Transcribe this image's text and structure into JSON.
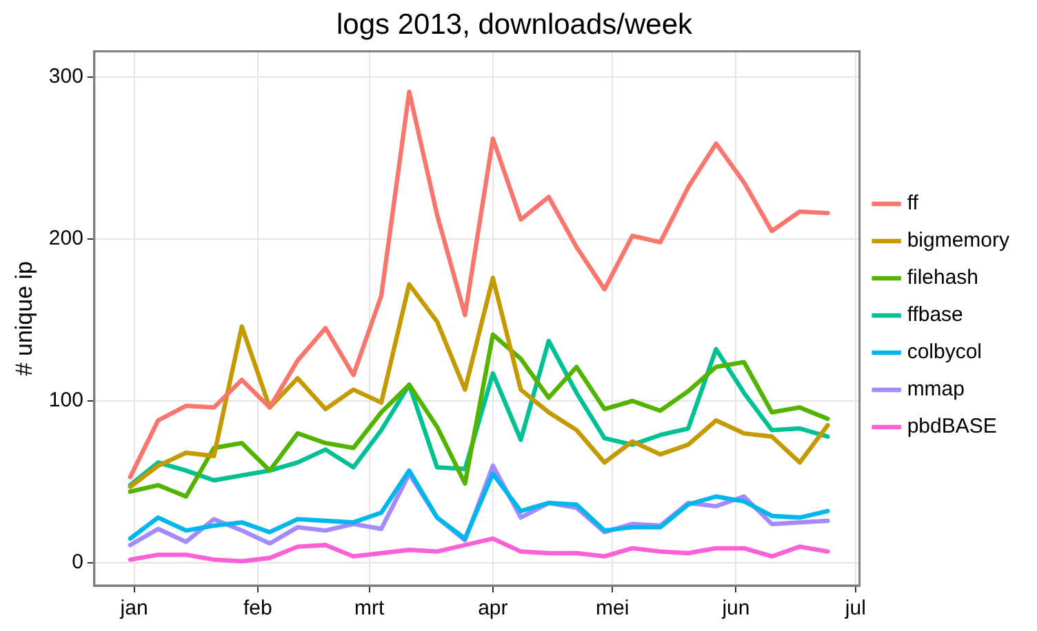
{
  "chart_data": {
    "type": "line",
    "title": "logs 2013, downloads/week",
    "ylabel": "# unique ip",
    "x": [
      "2012-12-31",
      "2013-01-07",
      "2013-01-14",
      "2013-01-21",
      "2013-01-28",
      "2013-02-04",
      "2013-02-11",
      "2013-02-18",
      "2013-02-25",
      "2013-03-04",
      "2013-03-11",
      "2013-03-18",
      "2013-03-25",
      "2013-04-01",
      "2013-04-08",
      "2013-04-15",
      "2013-04-22",
      "2013-04-29",
      "2013-05-06",
      "2013-05-13",
      "2013-05-20",
      "2013-05-27",
      "2013-06-03",
      "2013-06-10",
      "2013-06-17",
      "2013-06-24"
    ],
    "series": [
      {
        "name": "ff",
        "color": "#f8766d",
        "values": [
          53,
          88,
          97,
          96,
          113,
          96,
          125,
          145,
          116,
          165,
          291,
          215,
          153,
          262,
          212,
          226,
          195,
          169,
          202,
          198,
          232,
          259,
          235,
          205,
          217,
          216
        ]
      },
      {
        "name": "bigmemory",
        "color": "#c49a00",
        "values": [
          47,
          60,
          68,
          66,
          146,
          96,
          114,
          95,
          107,
          99,
          172,
          149,
          107,
          176,
          107,
          93,
          82,
          62,
          75,
          67,
          73,
          88,
          80,
          78,
          62,
          85
        ]
      },
      {
        "name": "filehash",
        "color": "#53b400",
        "values": [
          44,
          48,
          41,
          71,
          74,
          57,
          80,
          74,
          71,
          93,
          110,
          84,
          49,
          141,
          126,
          102,
          121,
          95,
          100,
          94,
          106,
          121,
          124,
          93,
          96,
          89
        ]
      },
      {
        "name": "ffbase",
        "color": "#00c094",
        "values": [
          48,
          62,
          57,
          51,
          54,
          57,
          62,
          70,
          59,
          82,
          110,
          59,
          58,
          117,
          76,
          137,
          105,
          77,
          73,
          79,
          83,
          132,
          105,
          82,
          83,
          78
        ]
      },
      {
        "name": "colbycol",
        "color": "#00b6eb",
        "values": [
          15,
          28,
          20,
          23,
          25,
          19,
          27,
          26,
          25,
          31,
          57,
          28,
          15,
          55,
          32,
          37,
          36,
          20,
          22,
          22,
          36,
          41,
          38,
          29,
          28,
          32
        ]
      },
      {
        "name": "mmap",
        "color": "#a58aff",
        "values": [
          11,
          21,
          13,
          27,
          20,
          12,
          22,
          20,
          24,
          21,
          55,
          28,
          14,
          60,
          28,
          37,
          34,
          19,
          24,
          23,
          37,
          35,
          41,
          24,
          25,
          26
        ]
      },
      {
        "name": "pbdBASE",
        "color": "#fb61d7",
        "values": [
          2,
          5,
          5,
          2,
          1,
          3,
          10,
          11,
          4,
          6,
          8,
          7,
          11,
          15,
          7,
          6,
          6,
          4,
          9,
          7,
          6,
          9,
          9,
          4,
          10,
          7
        ]
      }
    ],
    "xlim": [
      "2012-12-22",
      "2013-07-02"
    ],
    "xticks": [
      {
        "value": "2013-01-01",
        "label": "jan"
      },
      {
        "value": "2013-02-01",
        "label": "feb"
      },
      {
        "value": "2013-03-01",
        "label": "mrt"
      },
      {
        "value": "2013-04-01",
        "label": "apr"
      },
      {
        "value": "2013-05-01",
        "label": "mei"
      },
      {
        "value": "2013-06-01",
        "label": "jun"
      },
      {
        "value": "2013-07-01",
        "label": "jul"
      }
    ],
    "ylim": [
      -14,
      316
    ],
    "yticks": [
      0,
      100,
      200,
      300
    ],
    "grid": true,
    "legend": "right",
    "marker": "none",
    "line_style": "solid"
  }
}
